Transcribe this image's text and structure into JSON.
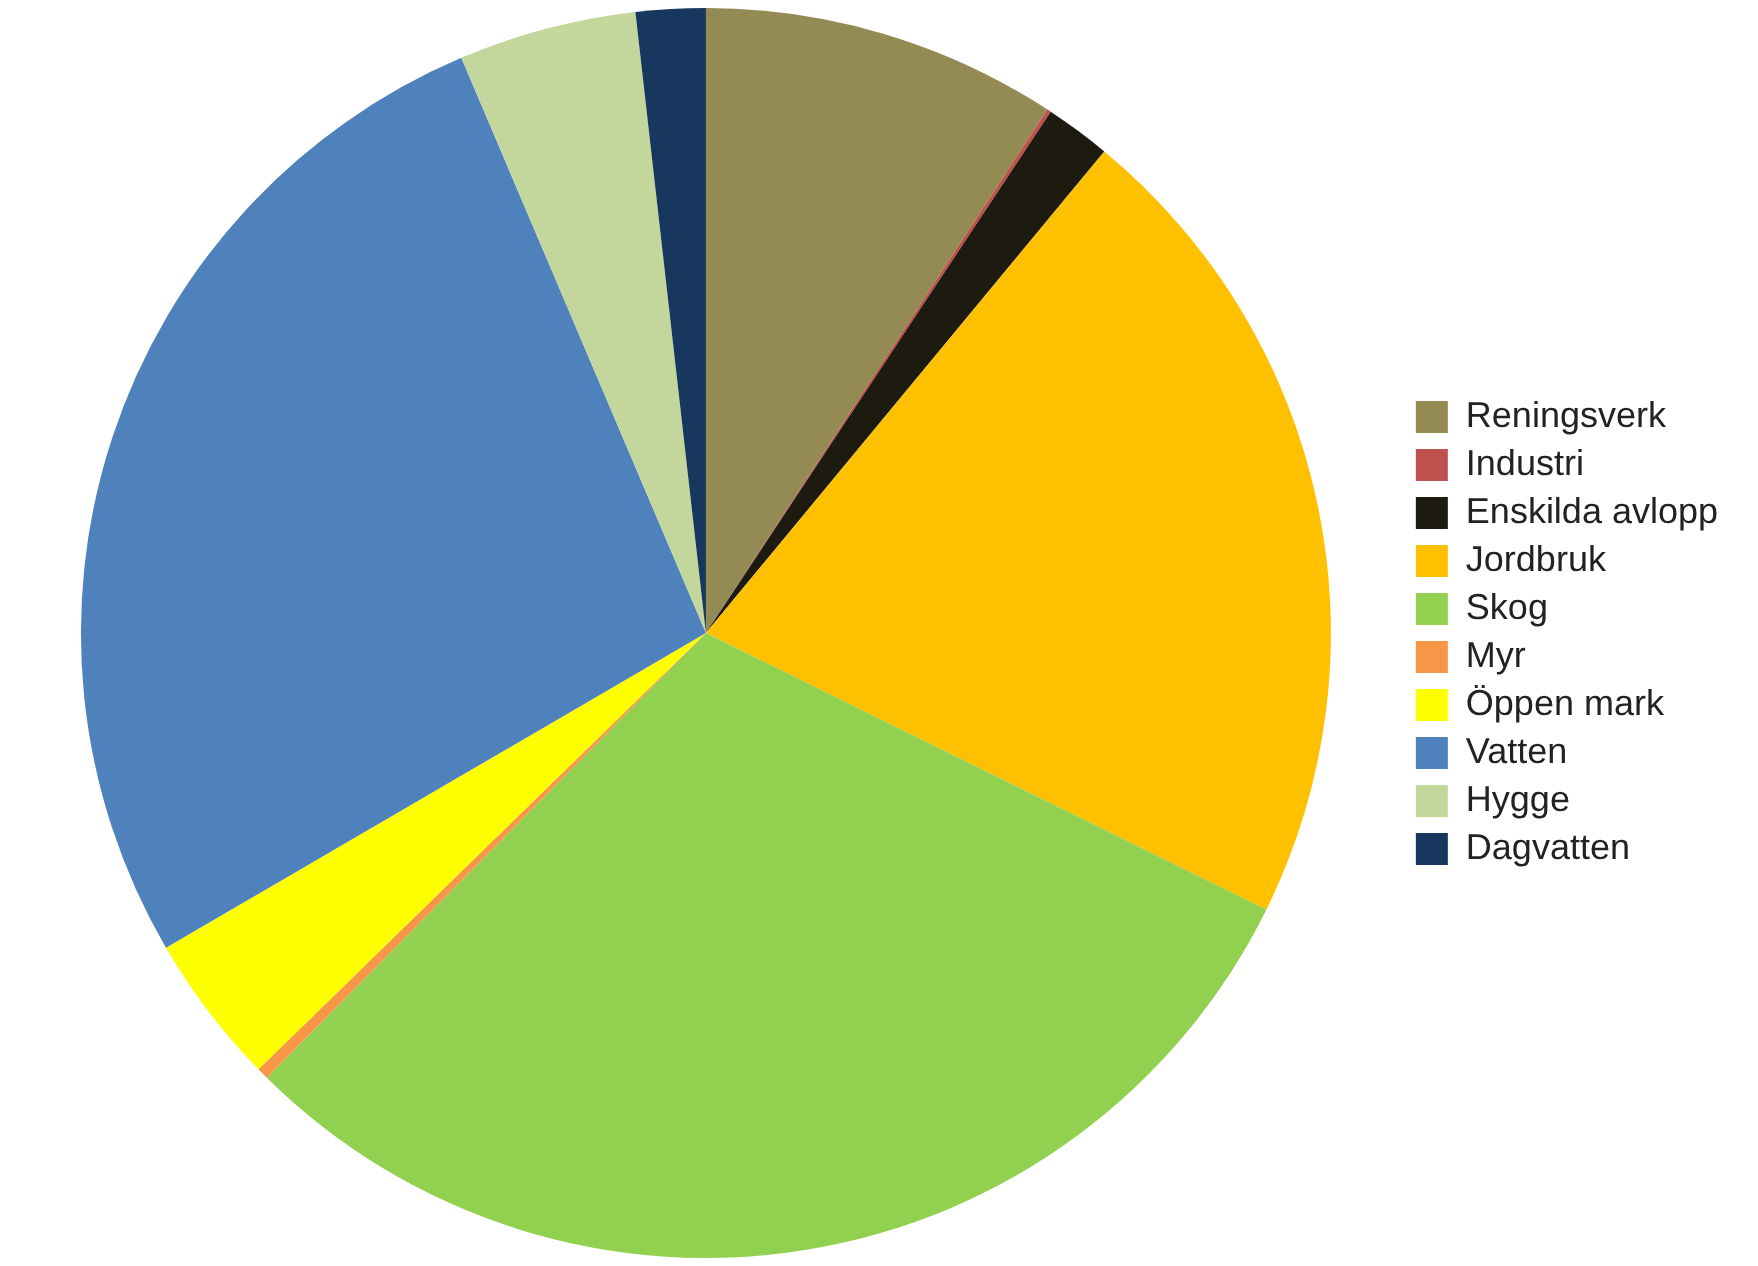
{
  "chart_data": {
    "type": "pie",
    "categories": [
      "Reningsverk",
      "Industri",
      "Enskilda avlopp",
      "Jordbruk",
      "Skog",
      "Myr",
      "Öppen mark",
      "Vatten",
      "Hygge",
      "Dagvatten"
    ],
    "values": [
      9.2,
      0.1,
      1.7,
      21.3,
      30.1,
      0.3,
      3.9,
      27,
      4.6,
      1.8
    ],
    "colors": [
      "#948a54",
      "#c0504d",
      "#1d1b10",
      "#ffc000",
      "#92d050",
      "#f79646",
      "#ffff00",
      "#4f81bd",
      "#c3d69b",
      "#17375e"
    ],
    "legend": "right"
  }
}
